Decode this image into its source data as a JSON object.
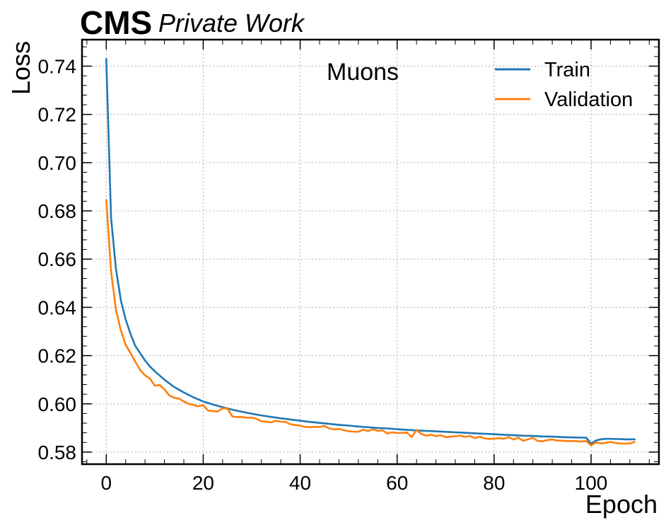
{
  "header": {
    "experiment": "CMS",
    "subtitle": "Private Work"
  },
  "chart_data": {
    "type": "line",
    "xlabel": "Epoch",
    "ylabel": "Loss",
    "annotation": "Muons",
    "xlim": [
      -5,
      114
    ],
    "ylim": [
      0.575,
      0.751
    ],
    "xticks": [
      0,
      20,
      40,
      60,
      80,
      100
    ],
    "xtick_labels": [
      "0",
      "20",
      "40",
      "60",
      "80",
      "100"
    ],
    "yticks": [
      0.58,
      0.6,
      0.62,
      0.64,
      0.66,
      0.68,
      0.7,
      0.72,
      0.74
    ],
    "ytick_labels": [
      "0.58",
      "0.60",
      "0.62",
      "0.64",
      "0.66",
      "0.68",
      "0.70",
      "0.72",
      "0.74"
    ],
    "grid": true,
    "legend_position": "top-right",
    "series": [
      {
        "name": "Train",
        "color": "#1f77b4",
        "x": [
          0,
          1,
          2,
          3,
          4,
          5,
          6,
          7,
          8,
          9,
          10,
          12,
          14,
          16,
          18,
          20,
          22,
          24,
          26,
          28,
          30,
          32,
          34,
          36,
          38,
          40,
          42,
          44,
          46,
          48,
          50,
          52,
          54,
          56,
          58,
          60,
          62,
          64,
          66,
          68,
          70,
          72,
          74,
          76,
          78,
          80,
          82,
          84,
          86,
          88,
          90,
          92,
          94,
          96,
          98,
          99,
          100,
          101,
          102,
          103,
          104,
          105,
          106,
          107,
          108,
          109
        ],
        "y": [
          0.743,
          0.677,
          0.656,
          0.643,
          0.635,
          0.629,
          0.624,
          0.621,
          0.618,
          0.6155,
          0.6135,
          0.61,
          0.607,
          0.6047,
          0.6027,
          0.601,
          0.5997,
          0.5986,
          0.5976,
          0.5967,
          0.5959,
          0.5952,
          0.5946,
          0.594,
          0.5935,
          0.593,
          0.5925,
          0.5921,
          0.5917,
          0.5913,
          0.591,
          0.5906,
          0.5903,
          0.59,
          0.5898,
          0.5895,
          0.5892,
          0.589,
          0.5888,
          0.5886,
          0.5884,
          0.5882,
          0.588,
          0.5878,
          0.5876,
          0.5874,
          0.5872,
          0.587,
          0.5868,
          0.5867,
          0.5865,
          0.5864,
          0.5862,
          0.5861,
          0.586,
          0.586,
          0.5835,
          0.5848,
          0.5853,
          0.5855,
          0.5855,
          0.5854,
          0.5854,
          0.5853,
          0.5853,
          0.5853
        ]
      },
      {
        "name": "Validation",
        "color": "#ff7f0e",
        "x": [
          0,
          1,
          2,
          3,
          4,
          5,
          6,
          7,
          8,
          9,
          10,
          11,
          12,
          13,
          14,
          15,
          16,
          17,
          18,
          19,
          20,
          21,
          22,
          23,
          24,
          25,
          26,
          27,
          28,
          29,
          30,
          31,
          32,
          33,
          34,
          35,
          36,
          37,
          38,
          39,
          40,
          41,
          42,
          43,
          44,
          45,
          46,
          47,
          48,
          49,
          50,
          51,
          52,
          53,
          54,
          55,
          56,
          57,
          58,
          59,
          60,
          61,
          62,
          63,
          64,
          65,
          66,
          67,
          68,
          69,
          70,
          71,
          72,
          73,
          74,
          75,
          76,
          77,
          78,
          79,
          80,
          81,
          82,
          83,
          84,
          85,
          86,
          87,
          88,
          89,
          90,
          91,
          92,
          93,
          94,
          95,
          96,
          97,
          98,
          99,
          100,
          101,
          102,
          103,
          104,
          105,
          106,
          107,
          108,
          109
        ],
        "y": [
          0.6845,
          0.655,
          0.639,
          0.6305,
          0.6245,
          0.621,
          0.6175,
          0.614,
          0.6118,
          0.6105,
          0.6075,
          0.6078,
          0.606,
          0.6035,
          0.6025,
          0.6022,
          0.601,
          0.6,
          0.5995,
          0.599,
          0.5995,
          0.5972,
          0.597,
          0.5968,
          0.5982,
          0.598,
          0.5948,
          0.5945,
          0.5946,
          0.5942,
          0.5943,
          0.5938,
          0.5928,
          0.5926,
          0.5923,
          0.593,
          0.5926,
          0.5925,
          0.5915,
          0.5912,
          0.591,
          0.5905,
          0.5903,
          0.5905,
          0.5904,
          0.5908,
          0.5898,
          0.5894,
          0.5896,
          0.5891,
          0.5886,
          0.5885,
          0.5884,
          0.5893,
          0.5887,
          0.5895,
          0.5888,
          0.589,
          0.5877,
          0.5882,
          0.5879,
          0.588,
          0.5881,
          0.5862,
          0.5892,
          0.5875,
          0.5868,
          0.5872,
          0.5866,
          0.587,
          0.5862,
          0.5864,
          0.5866,
          0.5868,
          0.5863,
          0.5867,
          0.5858,
          0.5864,
          0.5857,
          0.5854,
          0.5856,
          0.5858,
          0.5855,
          0.5862,
          0.5852,
          0.586,
          0.5847,
          0.5853,
          0.5859,
          0.5846,
          0.5845,
          0.585,
          0.5852,
          0.5848,
          0.5847,
          0.5846,
          0.5846,
          0.5845,
          0.5844,
          0.5846,
          0.5828,
          0.584,
          0.5836,
          0.5838,
          0.5842,
          0.5838,
          0.5836,
          0.5835,
          0.5836,
          0.5842
        ]
      }
    ]
  }
}
